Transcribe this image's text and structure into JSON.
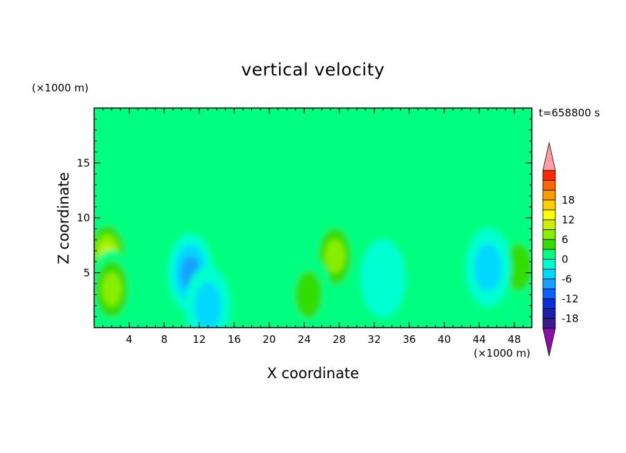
{
  "chart_data": {
    "type": "heatmap",
    "title": "vertical velocity",
    "xlabel": "X coordinate",
    "ylabel": "Z coordinate",
    "x_unit_label": "(×1000 m)",
    "y_unit_label": "(×1000 m)",
    "time_label": "t=658800 s",
    "xlim": [
      0,
      50
    ],
    "ylim": [
      0,
      20
    ],
    "xticks": [
      4,
      8,
      12,
      16,
      20,
      24,
      28,
      32,
      36,
      40,
      44,
      48
    ],
    "yticks": [
      5,
      10,
      15
    ],
    "colorbar": {
      "ticks": [
        18,
        12,
        6,
        0,
        -6,
        -12,
        -18
      ],
      "levels": [
        -21,
        -18,
        -15,
        -12,
        -9,
        -6,
        -3,
        0,
        3,
        6,
        9,
        12,
        15,
        18,
        21
      ],
      "colors": [
        "#8a10a8",
        "#3a1b8c",
        "#1b1fa8",
        "#0a2fd8",
        "#1060ff",
        "#19a0ff",
        "#00d8ff",
        "#00ffd0",
        "#00ff80",
        "#33dd00",
        "#88ee00",
        "#ccf000",
        "#ffff00",
        "#ffcc00",
        "#ff9900",
        "#ff6600",
        "#ff2a00",
        "#ff9fa5"
      ]
    },
    "features": [
      {
        "x": 1.5,
        "z": 6.5,
        "peak": 11
      },
      {
        "x": 2.0,
        "z": 3.5,
        "peak": 9
      },
      {
        "x": 27.5,
        "z": 6.5,
        "peak": 7
      },
      {
        "x": 24.5,
        "z": 3.0,
        "peak": 5
      },
      {
        "x": 48.5,
        "z": 5.5,
        "peak": 5
      },
      {
        "x": 11.0,
        "z": 5.0,
        "peak": -7
      },
      {
        "x": 13.0,
        "z": 2.0,
        "peak": -6
      },
      {
        "x": 45.0,
        "z": 5.5,
        "peak": -5
      },
      {
        "x": 33.0,
        "z": 4.5,
        "peak": -3
      },
      {
        "x": 31.0,
        "z": 16.0,
        "peak": 2
      },
      {
        "x": 18.0,
        "z": 15.5,
        "peak": 2
      }
    ]
  }
}
